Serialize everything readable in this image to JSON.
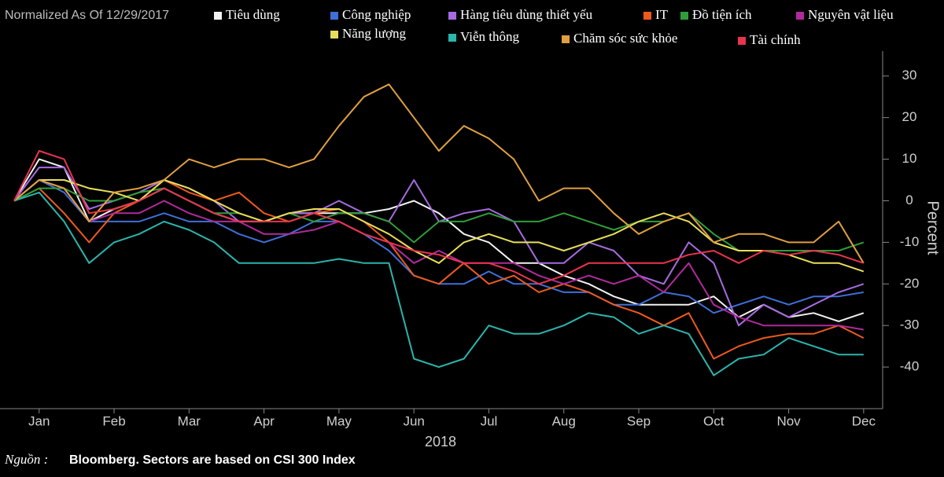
{
  "chart_data": {
    "type": "line",
    "subtitle": "Normalized As Of 12/29/2017",
    "x_label": "2018",
    "y_label": "Percent",
    "source_label": "Nguồn :",
    "source": "Bloomberg. Sectors are based on CSI 300 Index",
    "categories": [
      null,
      "Jan",
      null,
      null,
      "Feb",
      null,
      null,
      "Mar",
      null,
      null,
      "Apr",
      null,
      null,
      "May",
      null,
      null,
      "Jun",
      null,
      null,
      "Jul",
      null,
      null,
      "Aug",
      null,
      null,
      "Sep",
      null,
      null,
      "Oct",
      null,
      null,
      "Nov",
      null,
      null,
      "Dec"
    ],
    "ylim": [
      -50,
      36
    ],
    "yticks": [
      30,
      20,
      10,
      0,
      -10,
      -20,
      -30,
      -40
    ],
    "series": [
      {
        "name": "Tiêu dùng",
        "color": "#f2f2f2",
        "values": [
          0,
          10,
          8,
          -5,
          -2,
          0,
          3,
          0,
          -3,
          -5,
          -5,
          -3,
          -3,
          -3,
          -3,
          -2,
          0,
          -3,
          -8,
          -10,
          -15,
          -15,
          -18,
          -20,
          -23,
          -25,
          -25,
          -25,
          -23,
          -28,
          -25,
          -28,
          -27,
          -29,
          -27
        ]
      },
      {
        "name": "Công nghiệp",
        "color": "#3f6fd8",
        "values": [
          0,
          5,
          2,
          -5,
          -5,
          -5,
          -3,
          -5,
          -5,
          -8,
          -10,
          -8,
          -5,
          -5,
          -8,
          -12,
          -18,
          -20,
          -20,
          -17,
          -20,
          -20,
          -22,
          -22,
          -25,
          -25,
          -22,
          -23,
          -27,
          -25,
          -23,
          -25,
          -23,
          -23,
          -22
        ]
      },
      {
        "name": "Hàng tiêu dùng thiết yếu",
        "color": "#a66be0",
        "values": [
          0,
          8,
          8,
          -2,
          0,
          2,
          5,
          3,
          0,
          -5,
          -5,
          -3,
          -3,
          0,
          -3,
          -5,
          5,
          -5,
          -3,
          -2,
          -5,
          -15,
          -15,
          -10,
          -12,
          -18,
          -20,
          -10,
          -15,
          -30,
          -25,
          -28,
          -25,
          -22,
          -20
        ]
      },
      {
        "name": "IT",
        "color": "#ee5a1e",
        "values": [
          0,
          3,
          -3,
          -10,
          -3,
          0,
          5,
          2,
          0,
          2,
          -3,
          -5,
          -3,
          -2,
          -5,
          -10,
          -18,
          -20,
          -15,
          -20,
          -18,
          -22,
          -20,
          -22,
          -25,
          -27,
          -30,
          -27,
          -38,
          -35,
          -33,
          -32,
          -32,
          -30,
          -33
        ]
      },
      {
        "name": "Đồ tiện ích",
        "color": "#2f9e3a",
        "values": [
          0,
          3,
          3,
          0,
          0,
          2,
          3,
          0,
          -3,
          -3,
          -5,
          -3,
          -5,
          -3,
          -3,
          -5,
          -10,
          -5,
          -5,
          -3,
          -5,
          -5,
          -3,
          -5,
          -7,
          -5,
          -5,
          -3,
          -8,
          -12,
          -12,
          -12,
          -12,
          -12,
          -10
        ]
      },
      {
        "name": "Nguyên vật liệu",
        "color": "#b02a9c",
        "values": [
          0,
          5,
          3,
          -5,
          -3,
          -3,
          0,
          -3,
          -5,
          -5,
          -8,
          -8,
          -7,
          -5,
          -8,
          -10,
          -15,
          -12,
          -15,
          -15,
          -15,
          -18,
          -20,
          -18,
          -20,
          -18,
          -22,
          -15,
          -25,
          -28,
          -30,
          -30,
          -30,
          -30,
          -31
        ]
      },
      {
        "name": "Năng lượng",
        "color": "#e8df5a",
        "values": [
          0,
          5,
          5,
          3,
          2,
          0,
          5,
          3,
          0,
          -3,
          -5,
          -3,
          -2,
          -2,
          -5,
          -8,
          -12,
          -15,
          -10,
          -8,
          -10,
          -10,
          -12,
          -10,
          -8,
          -5,
          -3,
          -5,
          -10,
          -12,
          -12,
          -13,
          -15,
          -15,
          -17
        ]
      },
      {
        "name": "Viễn thông",
        "color": "#2bb5ad",
        "values": [
          0,
          2,
          -5,
          -15,
          -10,
          -8,
          -5,
          -7,
          -10,
          -15,
          -15,
          -15,
          -15,
          -14,
          -15,
          -15,
          -38,
          -40,
          -38,
          -30,
          -32,
          -32,
          -30,
          -27,
          -28,
          -32,
          -30,
          -32,
          -42,
          -38,
          -37,
          -33,
          -35,
          -37,
          -37
        ]
      },
      {
        "name": "Chăm sóc sức khỏe",
        "color": "#e0a040",
        "values": [
          0,
          5,
          3,
          -5,
          2,
          3,
          5,
          10,
          8,
          10,
          10,
          8,
          10,
          18,
          25,
          28,
          20,
          12,
          18,
          15,
          10,
          0,
          3,
          3,
          -3,
          -8,
          -5,
          -3,
          -10,
          -8,
          -8,
          -10,
          -10,
          -5,
          -15
        ]
      },
      {
        "name": "Tài chính",
        "color": "#e8344e",
        "values": [
          0,
          12,
          10,
          -3,
          -2,
          0,
          3,
          0,
          -3,
          -5,
          -5,
          -5,
          -3,
          -5,
          -8,
          -10,
          -12,
          -13,
          -15,
          -15,
          -17,
          -20,
          -18,
          -15,
          -15,
          -15,
          -15,
          -13,
          -12,
          -15,
          -12,
          -13,
          -12,
          -13,
          -15
        ]
      }
    ]
  }
}
